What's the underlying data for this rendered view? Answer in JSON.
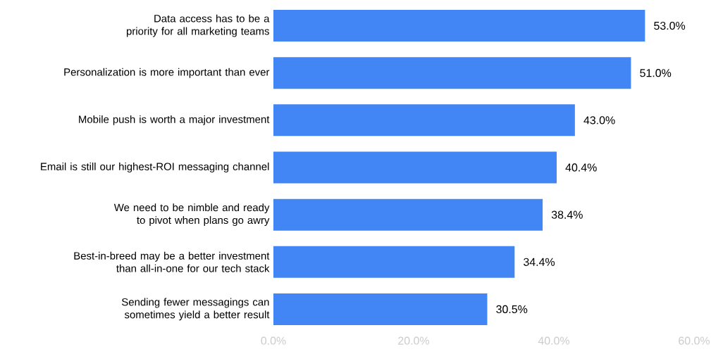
{
  "chart_data": {
    "type": "bar",
    "orientation": "horizontal",
    "categories": [
      "Data access has to be a priority for all marketing teams",
      "Personalization is more important than ever",
      "Mobile push is worth a major investment",
      "Email is still our highest-ROI messaging channel",
      "We need to be nimble and ready to pivot when plans go awry",
      "Best-in-breed may be a better investment than all-in-one for our tech stack",
      "Sending fewer messagings can sometimes yield a better result"
    ],
    "values": [
      53.0,
      51.0,
      43.0,
      40.4,
      38.4,
      34.4,
      30.5
    ],
    "value_labels": [
      "53.0%",
      "51.0%",
      "43.0%",
      "40.4%",
      "38.4%",
      "34.4%",
      "30.5%"
    ],
    "color": "#4285f4",
    "xlim": [
      0,
      60
    ],
    "xticks": [
      {
        "value": 0,
        "label": "0.0%"
      },
      {
        "value": 20,
        "label": "20.0%"
      },
      {
        "value": 40,
        "label": "40.0%"
      },
      {
        "value": 60,
        "label": "60.0%"
      }
    ],
    "grid": false
  }
}
